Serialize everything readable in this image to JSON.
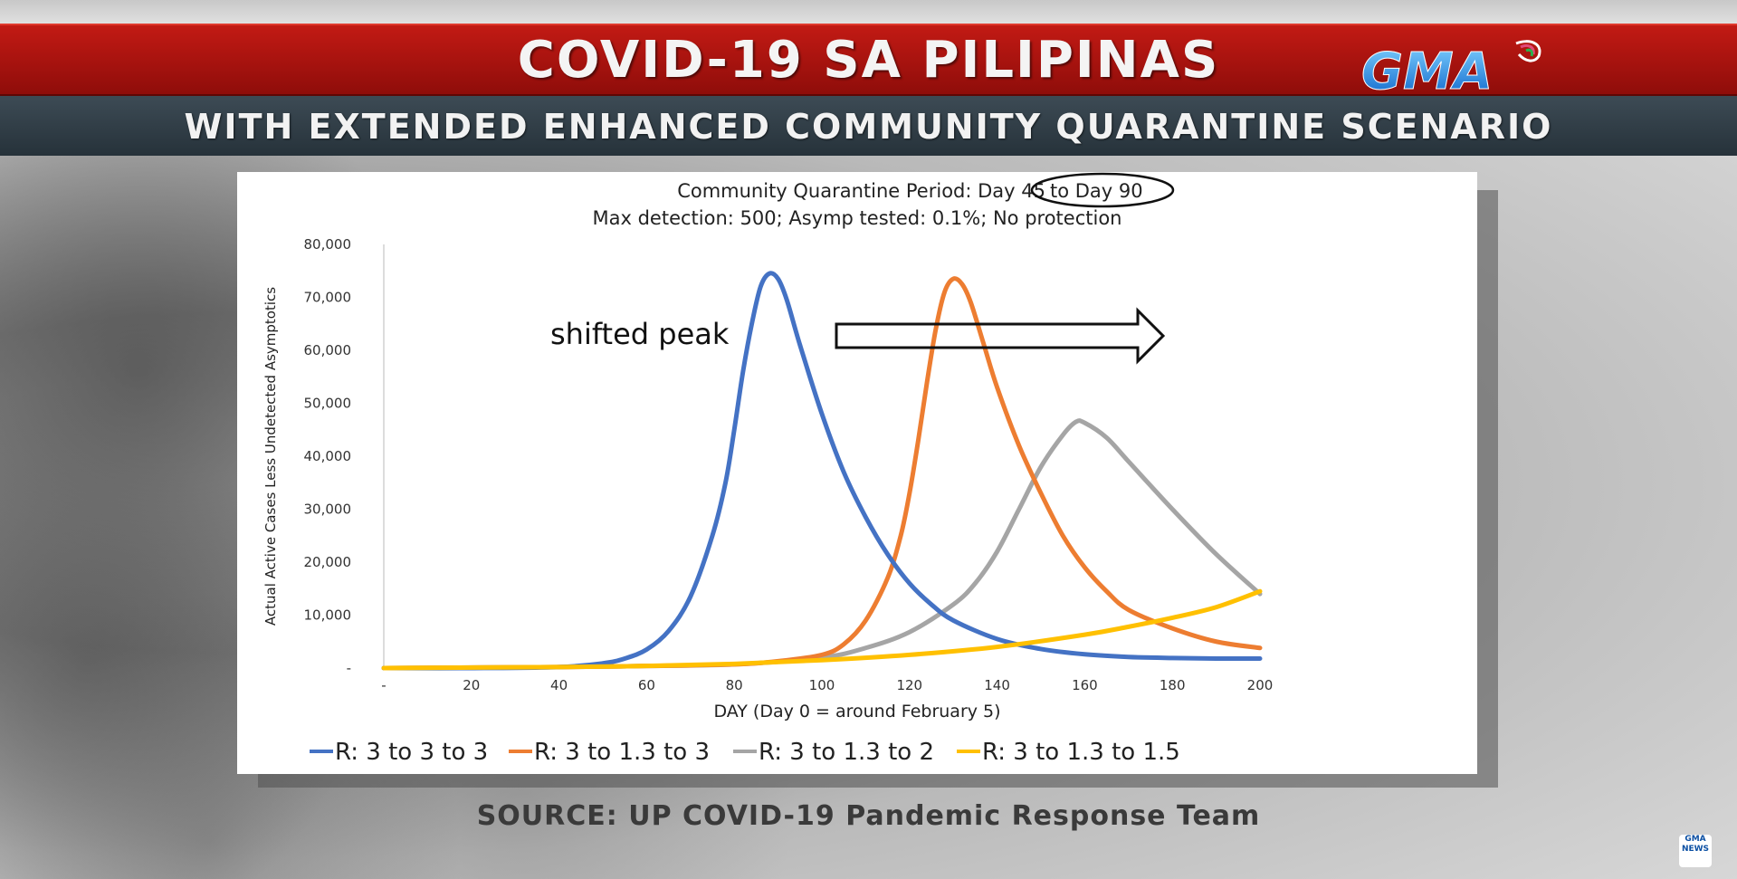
{
  "header": {
    "title": "COVID-19 SA PILIPINAS",
    "subtitle": "WITH EXTENDED ENHANCED COMMUNITY QUARANTINE SCENARIO",
    "brand": "GMA"
  },
  "footer": {
    "source": "SOURCE: UP COVID-19 Pandemic Response Team",
    "corner_logo": "GMA NEWS"
  },
  "chart_data": {
    "type": "line",
    "title_line1_a": "Community Quarantine Period: Day 45",
    "title_line1_b": "to Day 90",
    "title_line2": "Max detection: 500; Asymp tested: 0.1%; No protection",
    "xlabel": "DAY (Day 0 = around February 5)",
    "ylabel": "Actual Active Cases Less Undetected Asymptotics",
    "xlim": [
      0,
      200
    ],
    "ylim": [
      0,
      80000
    ],
    "x_ticks": [
      0,
      20,
      40,
      60,
      80,
      100,
      120,
      140,
      160,
      180,
      200
    ],
    "x_tick_labels": [
      "-",
      "20",
      "40",
      "60",
      "80",
      "100",
      "120",
      "140",
      "160",
      "180",
      "200"
    ],
    "y_ticks": [
      0,
      10000,
      20000,
      30000,
      40000,
      50000,
      60000,
      70000,
      80000
    ],
    "y_tick_labels": [
      "-",
      "10,000",
      "20,000",
      "30,000",
      "40,000",
      "50,000",
      "60,000",
      "70,000",
      "80,000"
    ],
    "annotation": "shifted peak",
    "legend_position": "bottom",
    "grid": false,
    "series": [
      {
        "name": "R: 3 to 3 to 3",
        "color": "#4472c4",
        "points": [
          [
            0,
            0
          ],
          [
            20,
            0
          ],
          [
            40,
            200
          ],
          [
            50,
            900
          ],
          [
            55,
            1800
          ],
          [
            60,
            3500
          ],
          [
            65,
            7000
          ],
          [
            70,
            13500
          ],
          [
            75,
            25000
          ],
          [
            78,
            35000
          ],
          [
            80,
            45000
          ],
          [
            82,
            56000
          ],
          [
            84,
            65000
          ],
          [
            86,
            72000
          ],
          [
            88,
            74500
          ],
          [
            90,
            73500
          ],
          [
            92,
            69500
          ],
          [
            95,
            61000
          ],
          [
            100,
            48000
          ],
          [
            105,
            37000
          ],
          [
            110,
            28500
          ],
          [
            115,
            21500
          ],
          [
            120,
            16000
          ],
          [
            125,
            12000
          ],
          [
            130,
            9000
          ],
          [
            140,
            5500
          ],
          [
            150,
            3600
          ],
          [
            160,
            2600
          ],
          [
            170,
            2100
          ],
          [
            180,
            1900
          ],
          [
            190,
            1800
          ],
          [
            200,
            1800
          ]
        ]
      },
      {
        "name": "R: 3 to 1.3 to 3",
        "color": "#ed7d31",
        "points": [
          [
            0,
            0
          ],
          [
            40,
            200
          ],
          [
            60,
            400
          ],
          [
            80,
            700
          ],
          [
            90,
            1300
          ],
          [
            100,
            2500
          ],
          [
            105,
            4500
          ],
          [
            110,
            9000
          ],
          [
            115,
            17000
          ],
          [
            118,
            25000
          ],
          [
            120,
            33000
          ],
          [
            122,
            43000
          ],
          [
            124,
            54000
          ],
          [
            126,
            64000
          ],
          [
            128,
            71000
          ],
          [
            130,
            73500
          ],
          [
            132,
            72500
          ],
          [
            134,
            69000
          ],
          [
            137,
            61000
          ],
          [
            140,
            53000
          ],
          [
            145,
            42000
          ],
          [
            150,
            33000
          ],
          [
            155,
            25000
          ],
          [
            160,
            19000
          ],
          [
            165,
            14500
          ],
          [
            170,
            11000
          ],
          [
            180,
            7500
          ],
          [
            190,
            5000
          ],
          [
            200,
            3800
          ]
        ]
      },
      {
        "name": "R: 3 to 1.3 to 2",
        "color": "#a5a5a5",
        "points": [
          [
            0,
            0
          ],
          [
            40,
            200
          ],
          [
            60,
            400
          ],
          [
            80,
            700
          ],
          [
            100,
            2000
          ],
          [
            110,
            3800
          ],
          [
            120,
            6800
          ],
          [
            130,
            12000
          ],
          [
            135,
            16000
          ],
          [
            140,
            22000
          ],
          [
            145,
            30000
          ],
          [
            150,
            38000
          ],
          [
            155,
            44000
          ],
          [
            158,
            46500
          ],
          [
            160,
            46300
          ],
          [
            165,
            43500
          ],
          [
            170,
            39000
          ],
          [
            180,
            30000
          ],
          [
            190,
            21500
          ],
          [
            200,
            14000
          ]
        ]
      },
      {
        "name": "R: 3 to 1.3 to 1.5",
        "color": "#ffc000",
        "points": [
          [
            0,
            0
          ],
          [
            40,
            200
          ],
          [
            60,
            400
          ],
          [
            80,
            800
          ],
          [
            100,
            1500
          ],
          [
            120,
            2500
          ],
          [
            140,
            4000
          ],
          [
            160,
            6300
          ],
          [
            170,
            7800
          ],
          [
            180,
            9500
          ],
          [
            190,
            11500
          ],
          [
            200,
            14500
          ]
        ]
      }
    ]
  }
}
